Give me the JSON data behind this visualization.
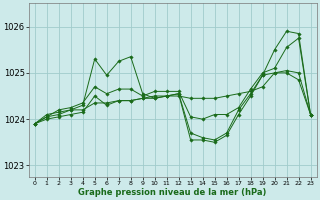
{
  "title": "Graphe pression niveau de la mer (hPa)",
  "bg_color": "#cdeaea",
  "line_color": "#1a6b1a",
  "marker_color": "#1a6b1a",
  "grid_color": "#a0cccc",
  "xlim": [
    -0.5,
    23.5
  ],
  "ylim": [
    1022.75,
    1026.5
  ],
  "yticks": [
    1023,
    1024,
    1025,
    1026
  ],
  "ytick_labels": [
    "1023",
    "1024",
    "1025",
    "1026"
  ],
  "xtick_labels": [
    "0",
    "1",
    "2",
    "3",
    "4",
    "5",
    "6",
    "7",
    "8",
    "9",
    "10",
    "11",
    "12",
    "13",
    "14",
    "15",
    "16",
    "17",
    "18",
    "19",
    "20",
    "21",
    "22",
    "23"
  ],
  "series": [
    [
      1023.9,
      1024.05,
      1024.1,
      1024.2,
      1024.2,
      1024.35,
      1024.35,
      1024.4,
      1024.4,
      1024.45,
      1024.45,
      1024.5,
      1024.5,
      1024.45,
      1024.45,
      1024.45,
      1024.5,
      1024.55,
      1024.6,
      1024.7,
      1025.0,
      1025.05,
      1025.0,
      1024.1
    ],
    [
      1023.9,
      1024.1,
      1024.15,
      1024.2,
      1024.3,
      1025.3,
      1024.95,
      1025.25,
      1025.35,
      1024.55,
      1024.45,
      1024.5,
      1024.55,
      1023.7,
      1023.6,
      1023.55,
      1023.7,
      1024.2,
      1024.55,
      1024.95,
      1025.5,
      1025.9,
      1025.85,
      1024.1
    ],
    [
      1023.9,
      1024.05,
      1024.2,
      1024.25,
      1024.35,
      1024.7,
      1024.55,
      1024.65,
      1024.65,
      1024.5,
      1024.6,
      1024.6,
      1024.6,
      1024.05,
      1024.0,
      1024.1,
      1024.1,
      1024.25,
      1024.65,
      1025.0,
      1025.1,
      1025.55,
      1025.75,
      1024.1
    ],
    [
      1023.9,
      1024.0,
      1024.05,
      1024.1,
      1024.15,
      1024.5,
      1024.3,
      1024.4,
      1024.4,
      1024.45,
      1024.5,
      1024.5,
      1024.55,
      1023.55,
      1023.55,
      1023.5,
      1023.65,
      1024.1,
      1024.5,
      1024.95,
      1025.0,
      1025.0,
      1024.85,
      1024.1
    ]
  ]
}
